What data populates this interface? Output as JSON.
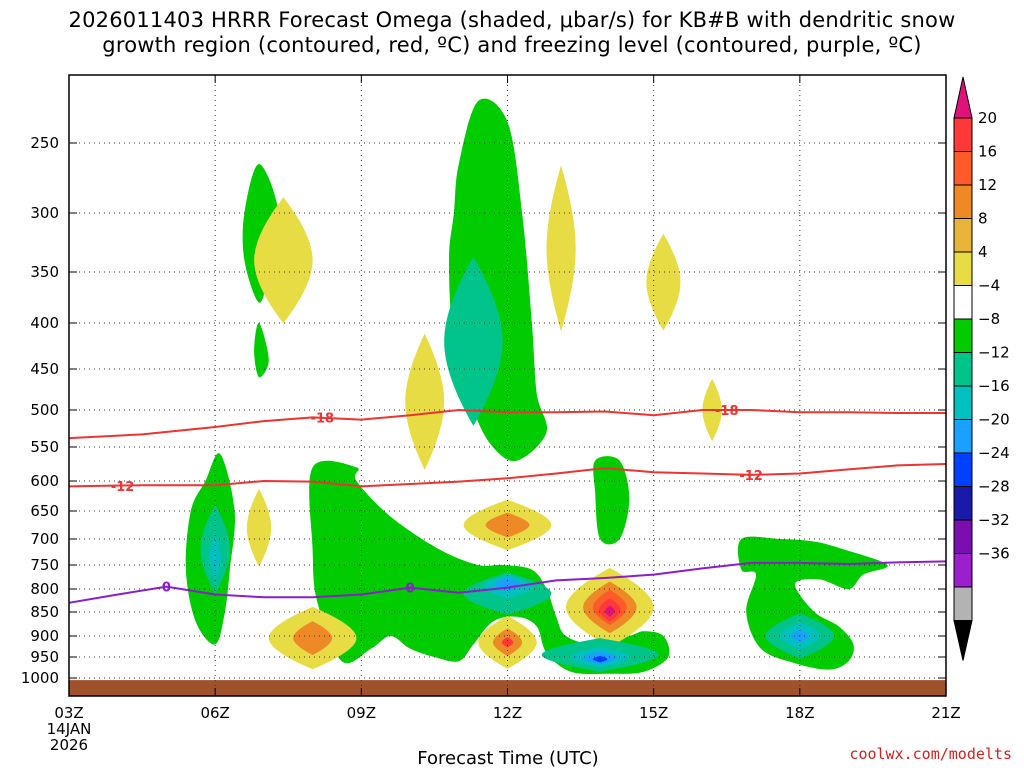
{
  "title_lines": [
    "2026011403 HRRR Forecast Omega (shaded, μbar/s) for KB#B with dendritic snow",
    "growth region (contoured, red, ºC) and freezing level (contoured, purple, ºC)"
  ],
  "source_text": "coolwx.com/modelts",
  "chart_data": {
    "type": "heatmap",
    "title": "2026011403 HRRR Forecast Omega (shaded, μbar/s) for KB#B with dendritic snow growth region (contoured, red, ºC) and freezing level (contoured, purple, ºC)",
    "xlabel": "Forecast Time (UTC)",
    "ylabel": "",
    "xlim": [
      3,
      21
    ],
    "ylim": [
      1000,
      200
    ],
    "x_ticks": [
      {
        "value": 3,
        "label": "03Z"
      },
      {
        "value": 6,
        "label": "06Z"
      },
      {
        "value": 9,
        "label": "09Z"
      },
      {
        "value": 12,
        "label": "12Z"
      },
      {
        "value": 15,
        "label": "15Z"
      },
      {
        "value": 18,
        "label": "18Z"
      },
      {
        "value": 21,
        "label": "21Z"
      }
    ],
    "x_date_label": [
      "14JAN",
      "2026"
    ],
    "y_ticks": [
      250,
      300,
      350,
      400,
      450,
      500,
      550,
      600,
      650,
      700,
      750,
      800,
      850,
      900,
      950,
      1000
    ],
    "colorbar": {
      "labels": [
        "20",
        "16",
        "12",
        "8",
        "4",
        "−4",
        "−8",
        "−12",
        "−16",
        "−20",
        "−24",
        "−28",
        "−32",
        "−36"
      ],
      "colors": [
        "#e0127a",
        "#ff3838",
        "#ff5b2a",
        "#ee8a25",
        "#e8b43a",
        "#e8dc45",
        "#ffffff",
        "#00cc00",
        "#00c48a",
        "#00c0c0",
        "#1aa0ff",
        "#0040ff",
        "#1a1aaa",
        "#7a0eb0",
        "#9c1fcd",
        "#b3b3b3",
        "#000000"
      ]
    },
    "omega_blobs": [
      {
        "category": "down 4-8",
        "t": 7.4,
        "p": 340,
        "dt": 0.6,
        "dp": 55,
        "color": "#e8dc45"
      },
      {
        "category": "down 4-8",
        "t": 10.3,
        "p": 490,
        "dt": 0.4,
        "dp": 85,
        "color": "#e8dc45"
      },
      {
        "category": "down 4-8",
        "t": 13.1,
        "p": 330,
        "dt": 0.3,
        "dp": 70,
        "color": "#e8dc45"
      },
      {
        "category": "down 4-8",
        "t": 15.2,
        "p": 360,
        "dt": 0.35,
        "dp": 45,
        "color": "#e8dc45"
      },
      {
        "category": "down 4-8",
        "t": 16.2,
        "p": 500,
        "dt": 0.2,
        "dp": 40,
        "color": "#e8dc45"
      },
      {
        "category": "down 4-8",
        "t": 6.9,
        "p": 680,
        "dt": 0.25,
        "dp": 70,
        "color": "#e8dc45"
      },
      {
        "category": "down 4-8",
        "t": 12.0,
        "p": 675,
        "dt": 0.9,
        "dp": 45,
        "color": "#e8dc45"
      },
      {
        "category": "down 8-12",
        "t": 12.0,
        "p": 675,
        "dt": 0.45,
        "dp": 22,
        "color": "#ee8a25"
      },
      {
        "category": "down 4-8",
        "t": 8.0,
        "p": 905,
        "dt": 0.9,
        "dp": 70,
        "color": "#e8dc45"
      },
      {
        "category": "down 8-12",
        "t": 8.0,
        "p": 905,
        "dt": 0.4,
        "dp": 38,
        "color": "#ee8a25"
      },
      {
        "category": "down 4-8",
        "t": 12.0,
        "p": 915,
        "dt": 0.6,
        "dp": 60,
        "color": "#e8dc45"
      },
      {
        "category": "down 8-12",
        "t": 12.0,
        "p": 915,
        "dt": 0.3,
        "dp": 32,
        "color": "#ee8a25"
      },
      {
        "category": "down 16-20",
        "t": 12.0,
        "p": 915,
        "dt": 0.12,
        "dp": 12,
        "color": "#ff3838"
      },
      {
        "category": "down 4-8",
        "t": 14.1,
        "p": 840,
        "dt": 0.9,
        "dp": 85,
        "color": "#e8dc45"
      },
      {
        "category": "down 8-12",
        "t": 14.1,
        "p": 840,
        "dt": 0.55,
        "dp": 55,
        "color": "#ee8a25"
      },
      {
        "category": "down 12-16",
        "t": 14.1,
        "p": 840,
        "dt": 0.35,
        "dp": 38,
        "color": "#ff5b2a"
      },
      {
        "category": "down 16-20",
        "t": 14.1,
        "p": 845,
        "dt": 0.22,
        "dp": 25,
        "color": "#ff3838"
      },
      {
        "category": "down >20",
        "t": 14.1,
        "p": 848,
        "dt": 0.1,
        "dp": 12,
        "color": "#e0127a"
      },
      {
        "category": "up 8-12",
        "t": 11.3,
        "p": 420,
        "dt": 0.6,
        "dp": 90,
        "color": "#00c48a"
      },
      {
        "category": "up 8-12",
        "t": 6.0,
        "p": 720,
        "dt": 0.3,
        "dp": 85,
        "color": "#00c48a"
      },
      {
        "category": "up 12-16",
        "t": 6.0,
        "p": 735,
        "dt": 0.12,
        "dp": 45,
        "color": "#00c0c0"
      },
      {
        "category": "up 8-12",
        "t": 12.0,
        "p": 810,
        "dt": 0.9,
        "dp": 45,
        "color": "#00c48a"
      },
      {
        "category": "up 12-16",
        "t": 12.0,
        "p": 795,
        "dt": 0.5,
        "dp": 25,
        "color": "#00c0c0"
      },
      {
        "category": "up 16-20",
        "t": 12.0,
        "p": 790,
        "dt": 0.25,
        "dp": 14,
        "color": "#1aa0ff"
      },
      {
        "category": "up 8-12",
        "t": 13.9,
        "p": 945,
        "dt": 1.2,
        "dp": 40,
        "color": "#00c48a"
      },
      {
        "category": "up 12-16",
        "t": 13.9,
        "p": 950,
        "dt": 0.6,
        "dp": 25,
        "color": "#00c0c0"
      },
      {
        "category": "up 16-20",
        "t": 13.9,
        "p": 952,
        "dt": 0.35,
        "dp": 15,
        "color": "#1aa0ff"
      },
      {
        "category": "up 20-24",
        "t": 13.9,
        "p": 955,
        "dt": 0.15,
        "dp": 8,
        "color": "#0040ff"
      },
      {
        "category": "up 8-12",
        "t": 18.0,
        "p": 900,
        "dt": 0.7,
        "dp": 50,
        "color": "#00c48a"
      },
      {
        "category": "up 12-16",
        "t": 18.0,
        "p": 900,
        "dt": 0.4,
        "dp": 30,
        "color": "#00c0c0"
      },
      {
        "category": "up 16-20",
        "t": 18.0,
        "p": 900,
        "dt": 0.18,
        "dp": 14,
        "color": "#1aa0ff"
      }
    ],
    "omega_regions": [
      {
        "category": "up 4-8",
        "color": "#00cc00",
        "points": [
          [
            11.0,
            265
          ],
          [
            11.4,
            220
          ],
          [
            12.0,
            235
          ],
          [
            12.3,
            300
          ],
          [
            12.5,
            400
          ],
          [
            12.6,
            480
          ],
          [
            12.8,
            530
          ],
          [
            12.2,
            570
          ],
          [
            11.7,
            550
          ],
          [
            11.3,
            500
          ],
          [
            10.9,
            420
          ],
          [
            10.8,
            340
          ],
          [
            10.9,
            300
          ]
        ]
      },
      {
        "category": "up 4-8",
        "color": "#00cc00",
        "points": [
          [
            6.6,
            300
          ],
          [
            6.9,
            265
          ],
          [
            7.3,
            300
          ],
          [
            7.1,
            350
          ],
          [
            6.9,
            380
          ],
          [
            6.6,
            340
          ]
        ]
      },
      {
        "category": "up 4-8",
        "color": "#00cc00",
        "points": [
          [
            6.9,
            400
          ],
          [
            7.1,
            440
          ],
          [
            6.9,
            460
          ],
          [
            6.8,
            430
          ]
        ]
      },
      {
        "category": "up 4-8",
        "color": "#00cc00",
        "points": [
          [
            5.8,
            600
          ],
          [
            6.1,
            560
          ],
          [
            6.4,
            650
          ],
          [
            6.3,
            760
          ],
          [
            6.2,
            850
          ],
          [
            6.0,
            920
          ],
          [
            5.6,
            870
          ],
          [
            5.4,
            760
          ],
          [
            5.5,
            650
          ]
        ]
      },
      {
        "category": "up 4-8",
        "color": "#00cc00",
        "points": [
          [
            13.8,
            570
          ],
          [
            14.3,
            570
          ],
          [
            14.5,
            630
          ],
          [
            14.3,
            700
          ],
          [
            13.9,
            700
          ],
          [
            13.8,
            620
          ]
        ]
      },
      {
        "category": "up 4-8",
        "color": "#00cc00",
        "points": [
          [
            8.0,
            580
          ],
          [
            8.9,
            580
          ],
          [
            8.9,
            600
          ],
          [
            9.6,
            660
          ],
          [
            10.6,
            720
          ],
          [
            11.4,
            750
          ],
          [
            11.9,
            750
          ],
          [
            12.5,
            760
          ],
          [
            12.8,
            800
          ],
          [
            13.0,
            860
          ],
          [
            13.2,
            900
          ],
          [
            13.8,
            920
          ],
          [
            14.5,
            900
          ],
          [
            14.8,
            890
          ],
          [
            15.2,
            900
          ],
          [
            15.3,
            950
          ],
          [
            14.8,
            985
          ],
          [
            14.1,
            990
          ],
          [
            13.3,
            985
          ],
          [
            12.8,
            940
          ],
          [
            12.6,
            880
          ],
          [
            12.2,
            860
          ],
          [
            11.7,
            870
          ],
          [
            11.3,
            920
          ],
          [
            11.0,
            960
          ],
          [
            10.5,
            950
          ],
          [
            10.0,
            930
          ],
          [
            9.6,
            900
          ],
          [
            9.2,
            930
          ],
          [
            8.6,
            960
          ],
          [
            8.1,
            830
          ],
          [
            8.0,
            720
          ]
        ]
      },
      {
        "category": "up 4-8",
        "color": "#00cc00",
        "points": [
          [
            16.8,
            700
          ],
          [
            17.6,
            700
          ],
          [
            18.3,
            705
          ],
          [
            18.9,
            720
          ],
          [
            19.8,
            750
          ],
          [
            19.3,
            770
          ],
          [
            19.0,
            800
          ],
          [
            18.4,
            780
          ],
          [
            17.9,
            790
          ],
          [
            18.3,
            850
          ],
          [
            18.8,
            880
          ],
          [
            19.1,
            920
          ],
          [
            19.0,
            960
          ],
          [
            18.6,
            980
          ],
          [
            17.9,
            965
          ],
          [
            17.2,
            930
          ],
          [
            16.9,
            850
          ],
          [
            17.1,
            770
          ],
          [
            16.8,
            760
          ]
        ]
      }
    ],
    "temperature_contours": [
      {
        "label": "-18",
        "color": "#ee3333",
        "points": [
          [
            3.0,
            538
          ],
          [
            4.5,
            533
          ],
          [
            6.0,
            523
          ],
          [
            7.0,
            515
          ],
          [
            8.0,
            510
          ],
          [
            9.0,
            513
          ],
          [
            10.0,
            507
          ],
          [
            11.0,
            500
          ],
          [
            12.0,
            503
          ],
          [
            13.0,
            503
          ],
          [
            14.0,
            502
          ],
          [
            15.0,
            507
          ],
          [
            16.0,
            500
          ],
          [
            17.0,
            500
          ],
          [
            18.0,
            503
          ],
          [
            19.0,
            503
          ],
          [
            20.0,
            504
          ],
          [
            21.0,
            504
          ]
        ]
      },
      {
        "label": "-12",
        "color": "#ee3333",
        "points": [
          [
            3.0,
            609
          ],
          [
            4.5,
            607
          ],
          [
            6.0,
            607
          ],
          [
            7.0,
            600
          ],
          [
            8.0,
            601
          ],
          [
            9.0,
            609
          ],
          [
            10.0,
            605
          ],
          [
            11.0,
            601
          ],
          [
            12.0,
            596
          ],
          [
            13.0,
            589
          ],
          [
            14.0,
            581
          ],
          [
            15.0,
            587
          ],
          [
            16.0,
            589
          ],
          [
            17.0,
            591
          ],
          [
            18.0,
            589
          ],
          [
            19.0,
            583
          ],
          [
            20.0,
            577
          ],
          [
            21.0,
            575
          ]
        ]
      },
      {
        "label": "0",
        "color": "#8a1ec8",
        "points": [
          [
            3.0,
            830
          ],
          [
            4.0,
            812
          ],
          [
            5.0,
            795
          ],
          [
            6.0,
            812
          ],
          [
            7.0,
            818
          ],
          [
            8.0,
            818
          ],
          [
            9.0,
            812
          ],
          [
            10.0,
            797
          ],
          [
            11.0,
            808
          ],
          [
            12.0,
            797
          ],
          [
            13.0,
            782
          ],
          [
            14.0,
            777
          ],
          [
            15.0,
            770
          ],
          [
            16.0,
            757
          ],
          [
            17.0,
            746
          ],
          [
            18.0,
            746
          ],
          [
            19.0,
            748
          ],
          [
            20.0,
            745
          ],
          [
            21.0,
            743
          ]
        ]
      }
    ],
    "contour_labels": [
      {
        "text": "-18",
        "t": 8.2,
        "p": 510,
        "color": "#ee3333"
      },
      {
        "text": "-18",
        "t": 16.5,
        "p": 500,
        "color": "#ee3333"
      },
      {
        "text": "-12",
        "t": 4.1,
        "p": 608,
        "color": "#ee3333"
      },
      {
        "text": "-12",
        "t": 17.0,
        "p": 591,
        "color": "#ee3333"
      },
      {
        "text": "0",
        "t": 5.0,
        "p": 795,
        "color": "#8a1ec8"
      },
      {
        "text": "0",
        "t": 10.0,
        "p": 797,
        "color": "#8a1ec8"
      }
    ],
    "ground_color": "#a0522d"
  }
}
